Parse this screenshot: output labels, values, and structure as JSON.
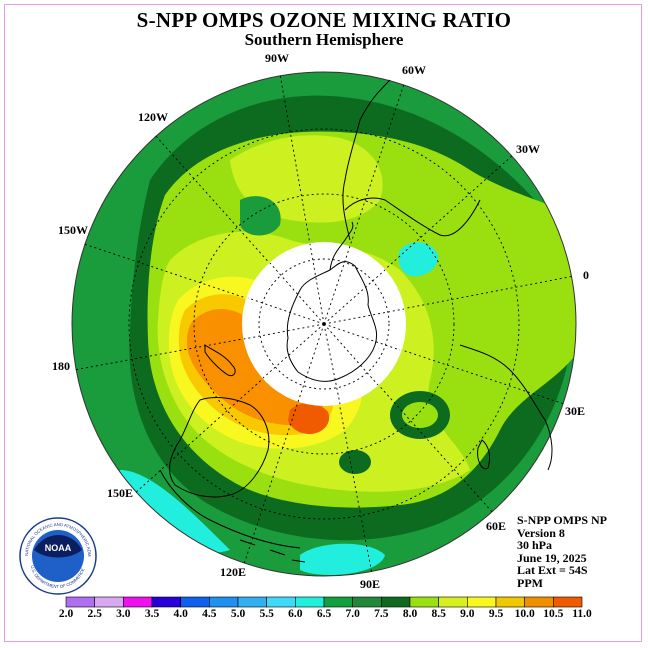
{
  "title": "S-NPP OMPS OZONE MIXING RATIO",
  "subtitle": "Southern Hemisphere",
  "longitude_labels": {
    "w90": "90W",
    "w60": "60W",
    "w30": "30W",
    "w120": "120W",
    "w150": "150W",
    "e0": "0",
    "e180": "180",
    "e30": "30E",
    "e150": "150E",
    "e60": "60E",
    "e120": "120E",
    "e90": "90E"
  },
  "info": {
    "instrument": "S-NPP OMPS NP",
    "version": "Version 8",
    "pressure": "30 hPa",
    "date": "June 19, 2025",
    "lat_ext": "Lat Ext = 54S",
    "units": "PPM"
  },
  "logo": {
    "name": "NOAA",
    "ring_text": "NATIONAL OCEANIC AND ATMOSPHERIC ADMINISTRATION",
    "bottom_text": "U.S. DEPARTMENT OF COMMERCE"
  },
  "colorbar": {
    "ticks": [
      "2.0",
      "2.5",
      "3.0",
      "3.5",
      "4.0",
      "4.5",
      "5.0",
      "5.5",
      "6.0",
      "6.5",
      "7.0",
      "7.5",
      "8.0",
      "8.5",
      "9.0",
      "9.5",
      "10.0",
      "10.5",
      "11.0"
    ],
    "colors": [
      "#b06ef0",
      "#d8a8f0",
      "#ee10ee",
      "#2a00d8",
      "#1060ee",
      "#1e90f0",
      "#30b0f0",
      "#40d8f8",
      "#22eedd",
      "#10a040",
      "#208838",
      "#0f6a20",
      "#9ae010",
      "#d8f020",
      "#f8f820",
      "#f0c800",
      "#f09000",
      "#f05a00",
      "#ee1010",
      "#885030"
    ]
  },
  "map_colors": {
    "c6_5": "#1a9b3c",
    "c7_0": "#0d6b20",
    "c7_5": "#9ae010",
    "c8_0": "#ccf020",
    "c8_5": "#f8f820",
    "c9_0": "#f8c800",
    "c9_5": "#f89000",
    "c10_0": "#f05a00",
    "c5_5": "#22eedd",
    "polar_cap": "#ffffff"
  }
}
